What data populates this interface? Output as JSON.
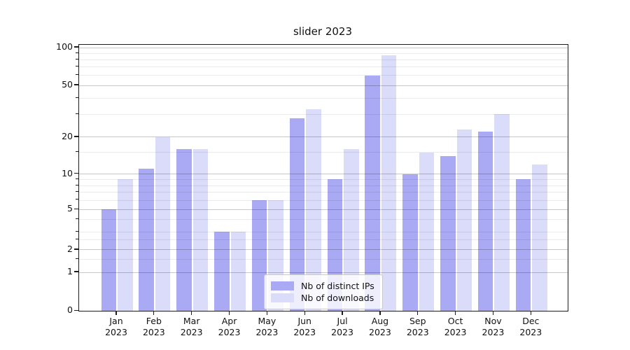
{
  "chart_data": {
    "type": "bar",
    "title": "slider 2023",
    "categories": [
      "Jan",
      "Feb",
      "Mar",
      "Apr",
      "May",
      "Jun",
      "Jul",
      "Aug",
      "Sep",
      "Oct",
      "Nov",
      "Dec"
    ],
    "tick_year": "2023",
    "series": [
      {
        "name": "Nb of distinct IPs",
        "color": "#a9a9f4",
        "values": [
          5,
          11,
          16,
          3,
          6,
          28,
          9,
          60,
          10,
          14,
          22,
          9
        ]
      },
      {
        "name": "Nb of downloads",
        "color": "#dbdbfa",
        "values": [
          9,
          20,
          16,
          3,
          6,
          33,
          16,
          87,
          15,
          23,
          30,
          12
        ]
      }
    ],
    "yaxis": {
      "scale": "symlog",
      "major_ticks": [
        0,
        1,
        2,
        5,
        10,
        20,
        50,
        100
      ],
      "minor_gridlines": [
        1.5,
        2.5,
        3,
        4,
        6,
        7,
        8,
        9,
        15,
        30,
        40,
        60,
        70,
        80,
        90
      ],
      "range": [
        0,
        105
      ]
    },
    "xlabel": "",
    "ylabel": "",
    "grid": true,
    "legend_position": "bottom-center"
  }
}
